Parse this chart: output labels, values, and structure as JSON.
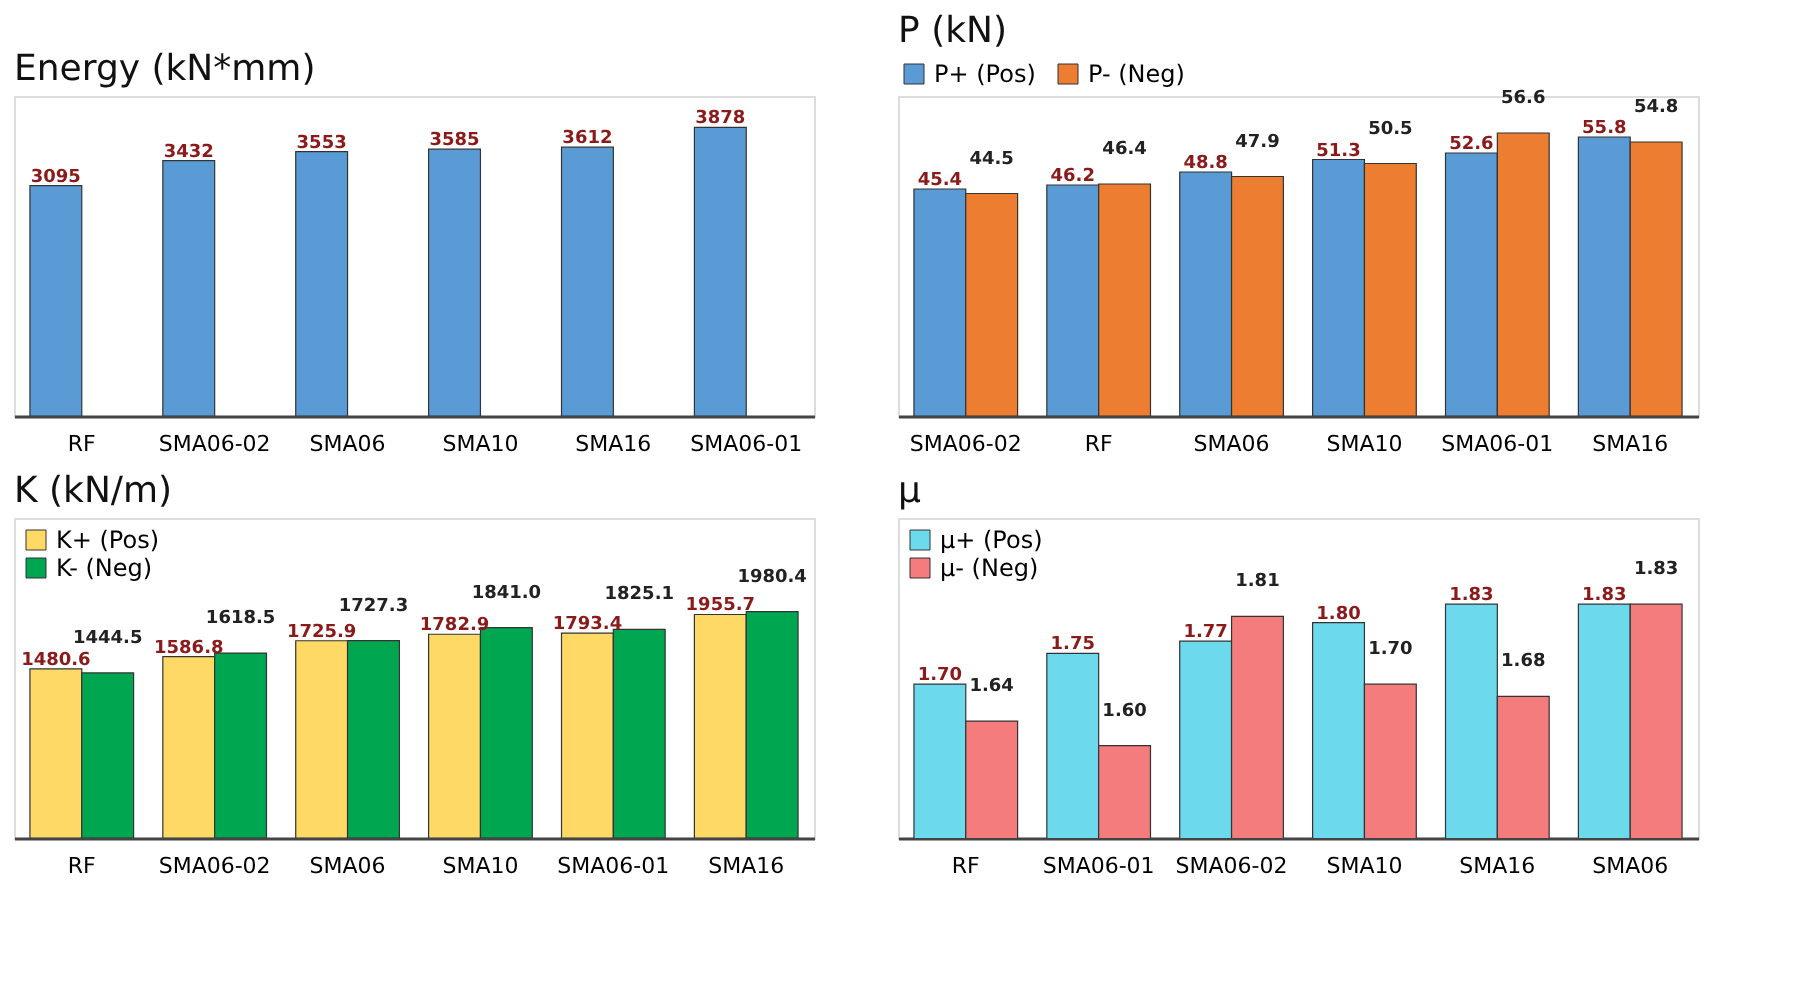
{
  "chart_data": [
    {
      "type": "bar",
      "title": "Energy (kN*mm)",
      "categories": [
        "RF",
        "SMA06-02",
        "SMA06",
        "SMA10",
        "SMA16",
        "SMA06-01"
      ],
      "data_labels": true,
      "ylim": [
        0,
        4300
      ],
      "tick_labels": "x",
      "grid": false,
      "legend": false,
      "series": [
        {
          "color": "#5b9bd5",
          "values": [
            3095,
            3432,
            3553,
            3585,
            3612,
            3878
          ]
        }
      ]
    },
    {
      "type": "bar",
      "title": "P (kN)",
      "categories": [
        "SMA06-02",
        "RF",
        "SMA06",
        "SMA10",
        "SMA06-01",
        "SMA16"
      ],
      "data_labels": true,
      "ylim": [
        0,
        64
      ],
      "tick_labels": "x",
      "grid": false,
      "legend": "top",
      "series": [
        {
          "name": "P+ (Pos)",
          "color": "#5b9bd5",
          "values": [
            45.4,
            46.2,
            48.8,
            51.3,
            52.6,
            55.8
          ]
        },
        {
          "name": "P- (Neg)",
          "color": "#ed7d31",
          "values": [
            44.5,
            46.4,
            47.9,
            50.5,
            56.6,
            54.8
          ]
        }
      ]
    },
    {
      "type": "bar",
      "title": "K (kN/m)",
      "categories": [
        "RF",
        "SMA06-02",
        "SMA06",
        "SMA10",
        "SMA06-01",
        "SMA16"
      ],
      "data_labels": true,
      "ylim": [
        0,
        2800
      ],
      "tick_labels": "x",
      "grid": false,
      "legend": "top left",
      "series": [
        {
          "name": "K+ (Pos)",
          "color": "#ffd966",
          "values": [
            1480.6,
            1586.8,
            1725.9,
            1782.9,
            1793.4,
            1955.7
          ],
          "value_labels": [
            "1480.6",
            "1586.8",
            "1725.9",
            "1782.9",
            "1793.4",
            "1955.7"
          ]
        },
        {
          "name": "K- (Neg)",
          "color": "#00a650",
          "values": [
            1444.5,
            1618.5,
            1727.3,
            1841.0,
            1825.1,
            1980.4
          ],
          "value_labels": [
            "1444.5",
            "1618.5",
            "1727.3",
            "1841.0",
            "1825.1",
            "1980.4"
          ]
        }
      ]
    },
    {
      "type": "bar",
      "title": "μ",
      "categories": [
        "RF",
        "SMA06-01",
        "SMA06-02",
        "SMA10",
        "SMA16",
        "SMA06"
      ],
      "data_labels": true,
      "ylim": [
        1.45,
        1.97
      ],
      "tick_labels": "x",
      "grid": false,
      "legend": "top left",
      "series": [
        {
          "name": "μ+ (Pos)",
          "color": "#6dd9ec",
          "values": [
            1.7,
            1.75,
            1.77,
            1.8,
            1.83,
            1.83
          ],
          "value_labels": [
            "1.70",
            "1.75",
            "1.77",
            "1.80",
            "1.83",
            "1.83"
          ]
        },
        {
          "name": "μ- (Neg)",
          "color": "#f47c7c",
          "values": [
            1.64,
            1.6,
            1.81,
            1.7,
            1.68,
            1.83
          ],
          "value_labels": [
            "1.64",
            "1.60",
            "1.81",
            "1.70",
            "1.68",
            "1.83"
          ]
        }
      ]
    }
  ]
}
